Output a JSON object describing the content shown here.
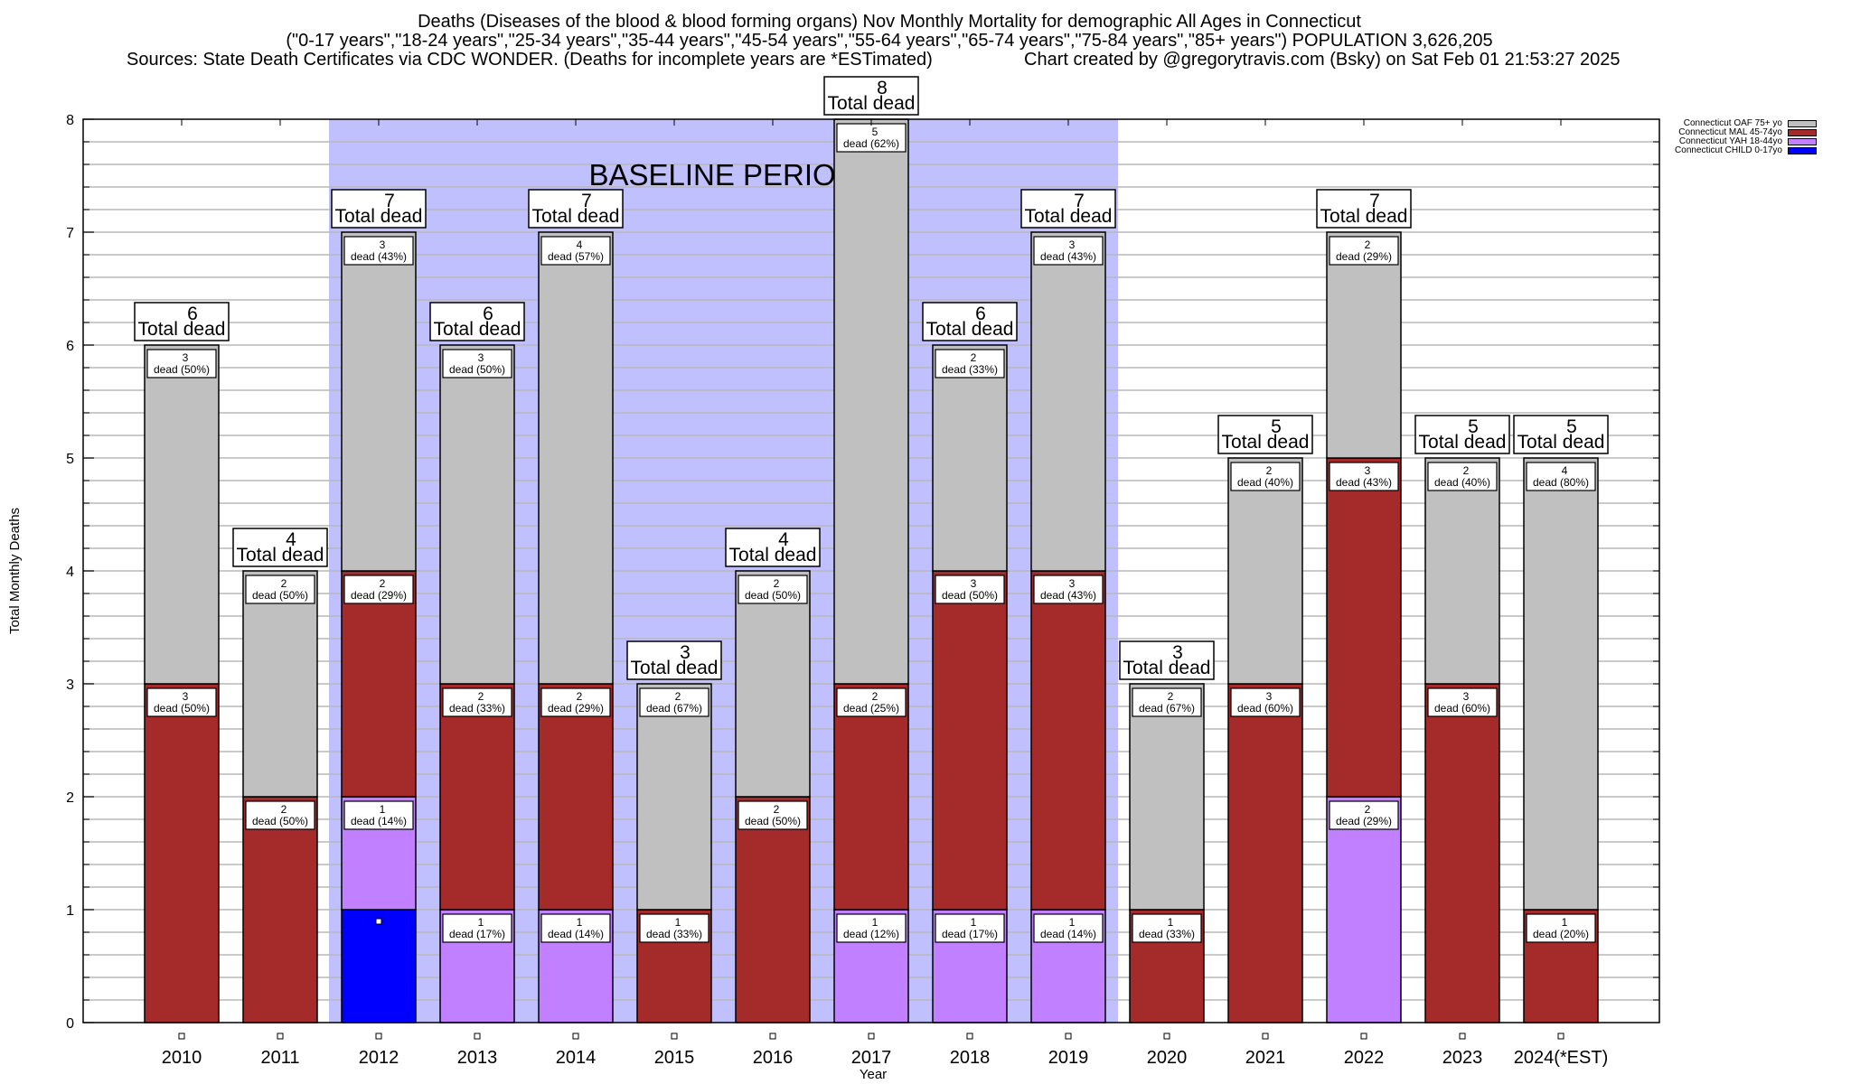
{
  "chart_data": {
    "type": "bar",
    "stacked": true,
    "title": "Deaths (Diseases of the blood & blood forming organs) Nov Monthly Mortality for demographic All Ages in Connecticut",
    "subtitle": "(\"0-17 years\",\"18-24 years\",\"25-34 years\",\"35-44 years\",\"45-54 years\",\"55-64 years\",\"65-74 years\",\"75-84 years\",\"85+ years\") POPULATION 3,626,205",
    "source": "Sources: State Death Certificates via CDC WONDER. (Deaths for incomplete years are *ESTimated)",
    "credit": "Chart created by @gregorytravis.com (Bsky) on Sat Feb 01 21:53:27 2025",
    "xlabel": "Year",
    "ylabel": "Total Monthly Deaths",
    "ylim": [
      0,
      8
    ],
    "yticks": [
      "0",
      "1",
      "2",
      "3",
      "4",
      "5",
      "6",
      "7",
      "8"
    ],
    "grid": true,
    "categories": [
      "2010",
      "2011",
      "2012",
      "2013",
      "2014",
      "2015",
      "2016",
      "2017",
      "2018",
      "2019",
      "2020",
      "2021",
      "2022",
      "2023",
      "2024(*EST)"
    ],
    "series": [
      {
        "name": "Connecticut CHILD 0-17yo",
        "color": "#0000ff",
        "values": [
          0,
          0,
          1,
          0,
          0,
          0,
          0,
          0,
          0,
          0,
          0,
          0,
          0,
          0,
          0
        ]
      },
      {
        "name": "Connecticut YAH 18-44yo",
        "color": "#c080ff",
        "values": [
          0,
          0,
          1,
          1,
          1,
          0,
          0,
          1,
          1,
          1,
          0,
          0,
          2,
          0,
          0
        ]
      },
      {
        "name": "Connecticut MAL 45-74yo",
        "color": "#a52a2a",
        "values": [
          3,
          2,
          2,
          2,
          2,
          1,
          2,
          2,
          3,
          3,
          1,
          3,
          3,
          3,
          1
        ]
      },
      {
        "name": "Connecticut OAF 75+ yo",
        "color": "#c0c0c0",
        "values": [
          3,
          2,
          3,
          3,
          4,
          2,
          2,
          5,
          2,
          3,
          2,
          2,
          2,
          2,
          4
        ]
      }
    ],
    "segment_labels": [
      [
        "",
        "",
        "",
        ""
      ],
      [
        "",
        "",
        "",
        ""
      ],
      [
        "",
        "1\ndead (14%)",
        "2\ndead (29%)",
        "3\ndead (43%)"
      ],
      [
        "",
        "1\ndead (17%)",
        "2\ndead (33%)",
        "3\ndead (50%)"
      ],
      [
        "",
        "1\ndead (14%)",
        "2\ndead (29%)",
        "4\ndead (57%)"
      ],
      [
        "",
        "",
        "1\ndead (33%)",
        "2\ndead (67%)"
      ],
      [
        "",
        "",
        "2\ndead (50%)",
        "2\ndead (50%)"
      ],
      [
        "",
        "1\ndead (12%)",
        "2\ndead (25%)",
        "5\ndead (62%)"
      ],
      [
        "",
        "1\ndead (17%)",
        "3\ndead (50%)",
        "2\ndead (33%)"
      ],
      [
        "",
        "1\ndead (14%)",
        "3\ndead (43%)",
        "3\ndead (43%)"
      ],
      [
        "",
        "",
        "1\ndead (33%)",
        "2\ndead (67%)"
      ],
      [
        "",
        "",
        "3\ndead (60%)",
        "2\ndead (40%)"
      ],
      [
        "",
        "2\ndead (29%)",
        "3\ndead (43%)",
        "2\ndead (29%)"
      ],
      [
        "",
        "",
        "3\ndead (60%)",
        "2\ndead (40%)"
      ],
      [
        "",
        "",
        "1\ndead (20%)",
        "4\ndead (80%)"
      ]
    ],
    "segment_label_text": {
      "2010": [
        "3 dead (50%)",
        "3 dead (50%)"
      ],
      "2011": [
        "2 dead (50%)",
        "2 dead (50%)"
      ]
    },
    "totals": [
      6,
      4,
      7,
      6,
      7,
      3,
      4,
      8,
      6,
      7,
      3,
      5,
      7,
      5,
      5
    ],
    "total_label_suffix": "Total dead",
    "baseline": {
      "label": "BASELINE PERIOD",
      "start": "2012",
      "end": "2019",
      "color": "#c0c0ff"
    },
    "legend_position": "top-right"
  }
}
